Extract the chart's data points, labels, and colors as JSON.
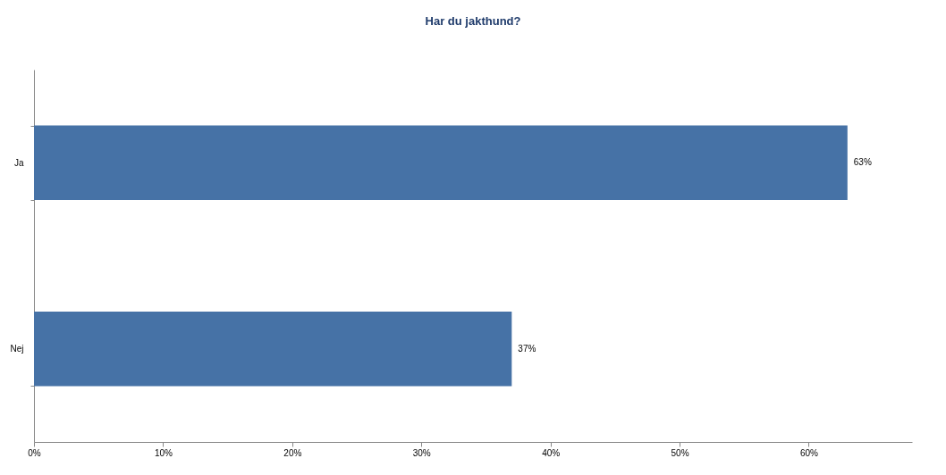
{
  "chart_data": {
    "type": "bar",
    "orientation": "horizontal",
    "title": "Har du jakthund?",
    "categories": [
      "Ja",
      "Nej"
    ],
    "values": [
      63,
      37
    ],
    "color": "#4672a6",
    "value_labels": [
      "63%",
      "37%"
    ],
    "xlim": [
      0,
      68
    ],
    "xticks": [
      {
        "value": 0,
        "label": "0%"
      },
      {
        "value": 10,
        "label": "10%"
      },
      {
        "value": 20,
        "label": "20%"
      },
      {
        "value": 30,
        "label": "30%"
      },
      {
        "value": 40,
        "label": "40%"
      },
      {
        "value": 50,
        "label": "50%"
      },
      {
        "value": 60,
        "label": "60%"
      }
    ],
    "grid": false
  }
}
